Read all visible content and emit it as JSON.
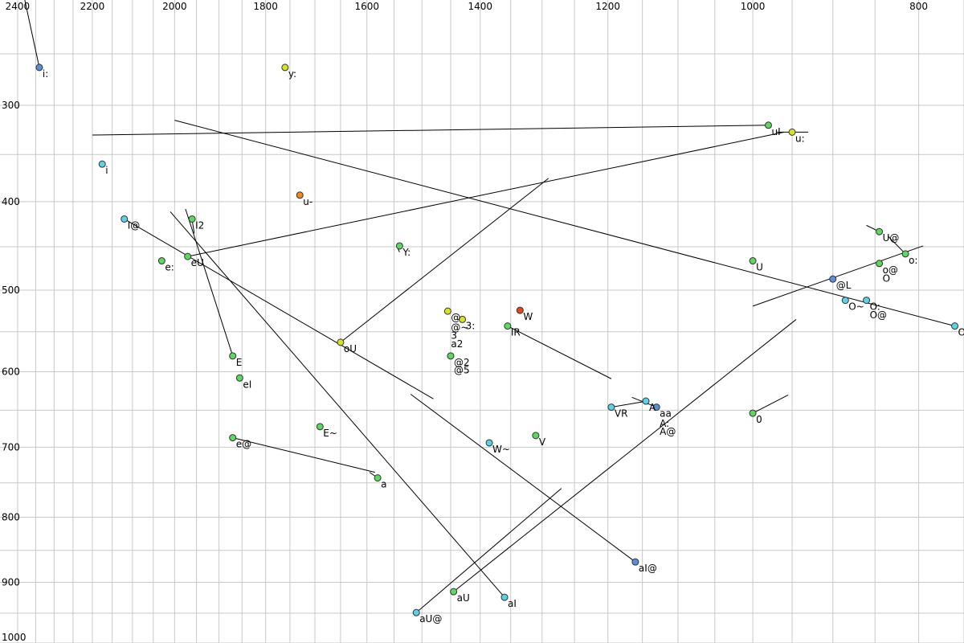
{
  "chart_data": {
    "type": "scatter",
    "x_axis": {
      "quantity": "F2",
      "reversed": true,
      "scale": "bark",
      "range": [
        750,
        2450
      ],
      "ticks": [
        2400,
        2200,
        2000,
        1800,
        1600,
        1400,
        1200,
        1000,
        800
      ],
      "position": "top"
    },
    "y_axis": {
      "quantity": "F1",
      "reversed": true,
      "scale": "bark",
      "range": [
        200,
        1000
      ],
      "ticks": [
        300,
        400,
        500,
        600,
        700,
        800,
        900,
        1000
      ],
      "position": "left"
    },
    "grid": true,
    "minor_gridlines_x": [
      2350,
      2300,
      2250,
      2150,
      2100,
      2050,
      1950,
      1900,
      1850,
      1750,
      1700,
      1650,
      1550,
      1500,
      1450,
      1350,
      1300,
      1250,
      1150,
      1100,
      1050,
      950,
      900,
      850,
      750
    ],
    "minor_gridlines_y": [
      250,
      350,
      450,
      550,
      650,
      750,
      850,
      950
    ],
    "point_colors": {
      "blue": "#5b8fd6",
      "cyan": "#5fd0e6",
      "green": "#5dd662",
      "yellow": "#d8e02a",
      "orange": "#f08a1e",
      "red": "#e04a1a"
    },
    "points": [
      {
        "label": "i:",
        "f2": 2340,
        "f1": 263,
        "color": "blue"
      },
      {
        "label": "y:",
        "f2": 1760,
        "f1": 263,
        "color": "yellow"
      },
      {
        "label": "uI",
        "f2": 980,
        "f1": 320,
        "color": "green"
      },
      {
        "label": "u:",
        "f2": 950,
        "f1": 327,
        "color": "yellow"
      },
      {
        "label": "i",
        "f2": 2175,
        "f1": 360,
        "color": "cyan"
      },
      {
        "label": "u-",
        "f2": 1730,
        "f1": 393,
        "color": "orange"
      },
      {
        "label": "I@",
        "f2": 2120,
        "f1": 419,
        "color": "cyan"
      },
      {
        "label": "I2",
        "f2": 1960,
        "f1": 419,
        "color": "green"
      },
      {
        "label": "e:",
        "f2": 2030,
        "f1": 466,
        "color": "green"
      },
      {
        "label": "eU",
        "f2": 1970,
        "f1": 461,
        "color": "green"
      },
      {
        "label": "Y:",
        "f2": 1540,
        "f1": 449,
        "color": "green"
      },
      {
        "label": "U",
        "f2": 1000,
        "f1": 466,
        "color": "green"
      },
      {
        "label": "U@",
        "f2": 845,
        "f1": 433,
        "color": "green"
      },
      {
        "label": "o:",
        "f2": 815,
        "f1": 458,
        "color": "green"
      },
      {
        "label": "o@",
        "f2": 845,
        "f1": 469,
        "color": "green"
      },
      {
        "label": "@L",
        "f2": 900,
        "f1": 487,
        "color": "blue"
      },
      {
        "label": "O~",
        "f2": 885,
        "f1": 512,
        "color": "cyan"
      },
      {
        "label": "O:",
        "f2": 860,
        "f1": 512,
        "color": "cyan"
      },
      {
        "label": "OI",
        "f2": 760,
        "f1": 543,
        "color": "cyan"
      },
      {
        "label": "@",
        "f2": 1455,
        "f1": 525,
        "color": "yellow"
      },
      {
        "label": "3:",
        "f2": 1430,
        "f1": 535,
        "color": "yellow"
      },
      {
        "label": "W",
        "f2": 1335,
        "f1": 524,
        "color": "red"
      },
      {
        "label": "IR",
        "f2": 1355,
        "f1": 543,
        "color": "green"
      },
      {
        "label": "oU",
        "f2": 1650,
        "f1": 563,
        "color": "yellow"
      },
      {
        "label": "@2",
        "f2": 1450,
        "f1": 580,
        "color": "green"
      },
      {
        "label": "E",
        "f2": 1870,
        "f1": 580,
        "color": "green"
      },
      {
        "label": "eI",
        "f2": 1855,
        "f1": 608,
        "color": "green"
      },
      {
        "label": "VR",
        "f2": 1195,
        "f1": 646,
        "color": "cyan"
      },
      {
        "label": "A",
        "f2": 1145,
        "f1": 638,
        "color": "cyan"
      },
      {
        "label": "aa",
        "f2": 1130,
        "f1": 646,
        "color": "blue"
      },
      {
        "label": "0",
        "f2": 1000,
        "f1": 654,
        "color": "green"
      },
      {
        "label": "E~",
        "f2": 1690,
        "f1": 672,
        "color": "green"
      },
      {
        "label": "e@",
        "f2": 1870,
        "f1": 687,
        "color": "green"
      },
      {
        "label": "W~",
        "f2": 1385,
        "f1": 694,
        "color": "cyan"
      },
      {
        "label": "V",
        "f2": 1310,
        "f1": 684,
        "color": "green"
      },
      {
        "label": "a",
        "f2": 1580,
        "f1": 743,
        "color": "green"
      },
      {
        "label": "aI@",
        "f2": 1160,
        "f1": 868,
        "color": "blue"
      },
      {
        "label": "aU",
        "f2": 1445,
        "f1": 915,
        "color": "green"
      },
      {
        "label": "aI",
        "f2": 1360,
        "f1": 924,
        "color": "cyan"
      },
      {
        "label": "aU@",
        "f2": 1510,
        "f1": 949,
        "color": "cyan"
      }
    ],
    "extra_labels": [
      {
        "label": "@~",
        "f2": 1455,
        "f1": 537
      },
      {
        "label": "3",
        "f2": 1455,
        "f1": 547
      },
      {
        "label": "a2",
        "f2": 1455,
        "f1": 557
      },
      {
        "label": "@5",
        "f2": 1450,
        "f1": 590
      },
      {
        "label": "A:",
        "f2": 1130,
        "f1": 659
      },
      {
        "label": "A@",
        "f2": 1130,
        "f1": 670
      },
      {
        "label": "O",
        "f2": 845,
        "f1": 479
      },
      {
        "label": "O@",
        "f2": 860,
        "f1": 522
      }
    ],
    "segments": [
      {
        "from": [
          2380,
          200
        ],
        "to": [
          2340,
          263
        ]
      },
      {
        "from": [
          2000,
          315
        ],
        "to": [
          760,
          543
        ]
      },
      {
        "from": [
          2200,
          330
        ],
        "to": [
          980,
          320
        ]
      },
      {
        "from": [
          970,
          327
        ],
        "to": [
          930,
          327
        ]
      },
      {
        "from": [
          1970,
          461
        ],
        "to": [
          960,
          327
        ]
      },
      {
        "from": [
          1650,
          563
        ],
        "to": [
          1290,
          375
        ]
      },
      {
        "from": [
          2120,
          419
        ],
        "to": [
          1480,
          635
        ]
      },
      {
        "from": [
          2010,
          411
        ],
        "to": [
          1360,
          924
        ]
      },
      {
        "from": [
          1975,
          408
        ],
        "to": [
          1870,
          580
        ]
      },
      {
        "from": [
          1960,
          420
        ],
        "to": [
          1955,
          435
        ]
      },
      {
        "from": [
          1545,
          449
        ],
        "to": [
          1540,
          456
        ]
      },
      {
        "from": [
          1870,
          687
        ],
        "to": [
          1585,
          735
        ]
      },
      {
        "from": [
          1595,
          735
        ],
        "to": [
          1580,
          743
        ]
      },
      {
        "from": [
          1355,
          543
        ],
        "to": [
          1195,
          609
        ]
      },
      {
        "from": [
          1195,
          646
        ],
        "to": [
          1150,
          639
        ]
      },
      {
        "from": [
          1165,
          633
        ],
        "to": [
          1130,
          646
        ]
      },
      {
        "from": [
          1000,
          654
        ],
        "to": [
          955,
          630
        ]
      },
      {
        "from": [
          1520,
          629
        ],
        "to": [
          1160,
          868
        ]
      },
      {
        "from": [
          1510,
          949
        ],
        "to": [
          1270,
          758
        ]
      },
      {
        "from": [
          1445,
          915
        ],
        "to": [
          945,
          535
        ]
      },
      {
        "from": [
          1000,
          519
        ],
        "to": [
          795,
          449
        ]
      },
      {
        "from": [
          860,
          426
        ],
        "to": [
          845,
          433
        ]
      },
      {
        "from": [
          835,
          438
        ],
        "to": [
          815,
          458
        ]
      }
    ]
  }
}
